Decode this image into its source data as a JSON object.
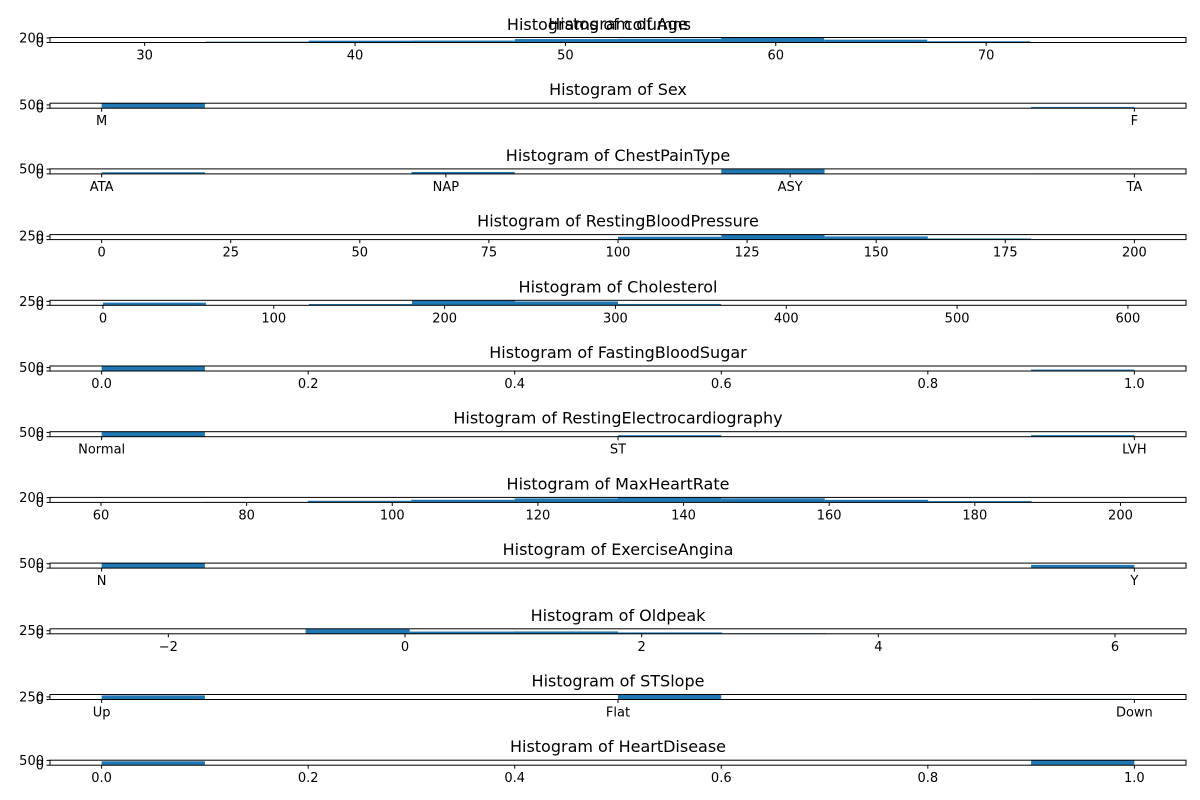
{
  "figure": {
    "suptitle": "Histograms of columns",
    "bar_color": "#1f77b4",
    "frame_color": "#000000"
  },
  "chart_data": [
    {
      "type": "bar",
      "title": "Histogram of Age",
      "x_kind": "numeric",
      "xlim": [
        25.5,
        79.5
      ],
      "xticks": [
        30,
        40,
        50,
        60,
        70
      ],
      "ylim": [
        0,
        220
      ],
      "yticks": [
        0,
        200
      ],
      "bins": [
        {
          "x0": 28,
          "x1": 32.9,
          "value": 4
        },
        {
          "x0": 32.9,
          "x1": 37.8,
          "value": 39
        },
        {
          "x0": 37.8,
          "x1": 42.7,
          "value": 81
        },
        {
          "x0": 42.7,
          "x1": 47.6,
          "value": 85
        },
        {
          "x0": 47.6,
          "x1": 52.5,
          "value": 151
        },
        {
          "x0": 52.5,
          "x1": 57.4,
          "value": 162
        },
        {
          "x0": 57.4,
          "x1": 62.3,
          "value": 199
        },
        {
          "x0": 62.3,
          "x1": 67.2,
          "value": 125
        },
        {
          "x0": 67.2,
          "x1": 72.1,
          "value": 56
        },
        {
          "x0": 72.1,
          "x1": 77,
          "value": 16
        }
      ]
    },
    {
      "type": "bar",
      "title": "Histogram of Sex",
      "x_kind": "categorical",
      "xlim": [
        -0.05,
        1.05
      ],
      "xticks": [
        0,
        1
      ],
      "xticklabels": [
        "M",
        "F"
      ],
      "ylim": [
        0,
        760
      ],
      "yticks": [
        0,
        500
      ],
      "bins": [
        {
          "x0": 0,
          "x1": 0.1,
          "value": 725
        },
        {
          "x0": 0.9,
          "x1": 1,
          "value": 193
        }
      ]
    },
    {
      "type": "bar",
      "title": "Histogram of ChestPainType",
      "x_kind": "categorical",
      "xlim": [
        -0.15,
        3.15
      ],
      "xticks": [
        0,
        1,
        2,
        3
      ],
      "xticklabels": [
        "ATA",
        "NAP",
        "ASY",
        "TA"
      ],
      "ylim": [
        0,
        520
      ],
      "yticks": [
        0,
        500
      ],
      "bins": [
        {
          "x0": 0,
          "x1": 0.3,
          "value": 173
        },
        {
          "x0": 0.9,
          "x1": 1.2,
          "value": 203
        },
        {
          "x0": 1.8,
          "x1": 2.1,
          "value": 496
        },
        {
          "x0": 2.7,
          "x1": 3,
          "value": 46
        }
      ]
    },
    {
      "type": "bar",
      "title": "Histogram of RestingBloodPressure",
      "x_kind": "numeric",
      "xlim": [
        -10,
        210
      ],
      "xticks": [
        0,
        25,
        50,
        75,
        100,
        125,
        150,
        175,
        200
      ],
      "ylim": [
        0,
        370
      ],
      "yticks": [
        0,
        250
      ],
      "bins": [
        {
          "x0": 0,
          "x1": 20,
          "value": 1
        },
        {
          "x0": 80,
          "x1": 100,
          "value": 12
        },
        {
          "x0": 100,
          "x1": 120,
          "value": 214
        },
        {
          "x0": 120,
          "x1": 140,
          "value": 351
        },
        {
          "x0": 140,
          "x1": 160,
          "value": 234
        },
        {
          "x0": 160,
          "x1": 180,
          "value": 84
        },
        {
          "x0": 180,
          "x1": 200,
          "value": 22
        }
      ]
    },
    {
      "type": "bar",
      "title": "Histogram of Cholesterol",
      "x_kind": "numeric",
      "xlim": [
        -31,
        634
      ],
      "xticks": [
        0,
        100,
        200,
        300,
        400,
        500,
        600
      ],
      "ylim": [
        0,
        320
      ],
      "yticks": [
        0,
        250
      ],
      "bins": [
        {
          "x0": 0,
          "x1": 60.3,
          "value": 172
        },
        {
          "x0": 60.3,
          "x1": 120.6,
          "value": 2
        },
        {
          "x0": 120.6,
          "x1": 180.9,
          "value": 84
        },
        {
          "x0": 180.9,
          "x1": 241.2,
          "value": 300
        },
        {
          "x0": 241.2,
          "x1": 301.5,
          "value": 247
        },
        {
          "x0": 301.5,
          "x1": 361.8,
          "value": 87
        },
        {
          "x0": 361.8,
          "x1": 422.1,
          "value": 17
        },
        {
          "x0": 422.1,
          "x1": 482.4,
          "value": 5
        },
        {
          "x0": 482.4,
          "x1": 542.7,
          "value": 3
        },
        {
          "x0": 542.7,
          "x1": 603,
          "value": 1
        }
      ]
    },
    {
      "type": "bar",
      "title": "Histogram of FastingBloodSugar",
      "x_kind": "numeric",
      "xlim": [
        -0.05,
        1.05
      ],
      "xticks": [
        0.0,
        0.2,
        0.4,
        0.6,
        0.8,
        1.0
      ],
      "xticklabels": [
        "0.0",
        "0.2",
        "0.4",
        "0.6",
        "0.8",
        "1.0"
      ],
      "ylim": [
        0,
        740
      ],
      "yticks": [
        0,
        500
      ],
      "bins": [
        {
          "x0": 0,
          "x1": 0.1,
          "value": 704
        },
        {
          "x0": 0.9,
          "x1": 1,
          "value": 214
        }
      ]
    },
    {
      "type": "bar",
      "title": "Histogram of RestingElectrocardiography",
      "x_kind": "categorical",
      "xlim": [
        -0.1,
        2.1
      ],
      "xticks": [
        0,
        1,
        2
      ],
      "xticklabels": [
        "Normal",
        "ST",
        "LVH"
      ],
      "ylim": [
        0,
        580
      ],
      "yticks": [
        0,
        500
      ],
      "bins": [
        {
          "x0": 0,
          "x1": 0.2,
          "value": 552
        },
        {
          "x0": 1,
          "x1": 1.2,
          "value": 178
        },
        {
          "x0": 1.8,
          "x1": 2,
          "value": 188
        }
      ]
    },
    {
      "type": "bar",
      "title": "Histogram of MaxHeartRate",
      "x_kind": "numeric",
      "xlim": [
        53,
        209
      ],
      "xticks": [
        60,
        80,
        100,
        120,
        140,
        160,
        180,
        200
      ],
      "ylim": [
        0,
        210
      ],
      "yticks": [
        0,
        200
      ],
      "bins": [
        {
          "x0": 60,
          "x1": 74.2,
          "value": 7
        },
        {
          "x0": 74.2,
          "x1": 88.4,
          "value": 20
        },
        {
          "x0": 88.4,
          "x1": 102.6,
          "value": 69
        },
        {
          "x0": 102.6,
          "x1": 116.8,
          "value": 110
        },
        {
          "x0": 116.8,
          "x1": 131,
          "value": 168
        },
        {
          "x0": 131,
          "x1": 145.2,
          "value": 198
        },
        {
          "x0": 145.2,
          "x1": 159.4,
          "value": 171
        },
        {
          "x0": 159.4,
          "x1": 173.6,
          "value": 108
        },
        {
          "x0": 173.6,
          "x1": 187.8,
          "value": 55
        },
        {
          "x0": 187.8,
          "x1": 202,
          "value": 12
        }
      ]
    },
    {
      "type": "bar",
      "title": "Histogram of ExerciseAngina",
      "x_kind": "categorical",
      "xlim": [
        -0.05,
        1.05
      ],
      "xticks": [
        0,
        1
      ],
      "xticklabels": [
        "N",
        "Y"
      ],
      "ylim": [
        0,
        570
      ],
      "yticks": [
        0,
        500
      ],
      "bins": [
        {
          "x0": 0,
          "x1": 0.1,
          "value": 547
        },
        {
          "x0": 0.9,
          "x1": 1,
          "value": 371
        }
      ]
    },
    {
      "type": "bar",
      "title": "Histogram of Oldpeak",
      "x_kind": "numeric",
      "xlim": [
        -3.0,
        6.6
      ],
      "xticks": [
        -2,
        0,
        2,
        4,
        6
      ],
      "xticklabels": [
        "−2",
        "0",
        "2",
        "4",
        "6"
      ],
      "ylim": [
        0,
        400
      ],
      "yticks": [
        0,
        250
      ],
      "bins": [
        {
          "x0": -2.6,
          "x1": -1.72,
          "value": 1
        },
        {
          "x0": -1.72,
          "x1": -0.84,
          "value": 3
        },
        {
          "x0": -0.84,
          "x1": 0.04,
          "value": 380
        },
        {
          "x0": 0.04,
          "x1": 0.92,
          "value": 180
        },
        {
          "x0": 0.92,
          "x1": 1.8,
          "value": 190
        },
        {
          "x0": 1.8,
          "x1": 2.68,
          "value": 110
        },
        {
          "x0": 2.68,
          "x1": 3.56,
          "value": 40
        },
        {
          "x0": 3.56,
          "x1": 4.44,
          "value": 10
        },
        {
          "x0": 4.44,
          "x1": 5.32,
          "value": 3
        },
        {
          "x0": 5.32,
          "x1": 6.2,
          "value": 1
        }
      ]
    },
    {
      "type": "bar",
      "title": "Histogram of STSlope",
      "x_kind": "categorical",
      "xlim": [
        -0.1,
        2.1
      ],
      "xticks": [
        0,
        1,
        2
      ],
      "xticklabels": [
        "Up",
        "Flat",
        "Down"
      ],
      "ylim": [
        0,
        480
      ],
      "yticks": [
        0,
        250
      ],
      "bins": [
        {
          "x0": 0,
          "x1": 0.2,
          "value": 395
        },
        {
          "x0": 1,
          "x1": 1.2,
          "value": 460
        },
        {
          "x0": 1.8,
          "x1": 2,
          "value": 63
        }
      ]
    },
    {
      "type": "bar",
      "title": "Histogram of HeartDisease",
      "x_kind": "numeric",
      "xlim": [
        -0.05,
        1.05
      ],
      "xticks": [
        0.0,
        0.2,
        0.4,
        0.6,
        0.8,
        1.0
      ],
      "xticklabels": [
        "0.0",
        "0.2",
        "0.4",
        "0.6",
        "0.8",
        "1.0"
      ],
      "ylim": [
        0,
        520
      ],
      "yticks": [
        0,
        500
      ],
      "bins": [
        {
          "x0": 0,
          "x1": 0.1,
          "value": 410
        },
        {
          "x0": 0.9,
          "x1": 1,
          "value": 508
        }
      ]
    }
  ]
}
